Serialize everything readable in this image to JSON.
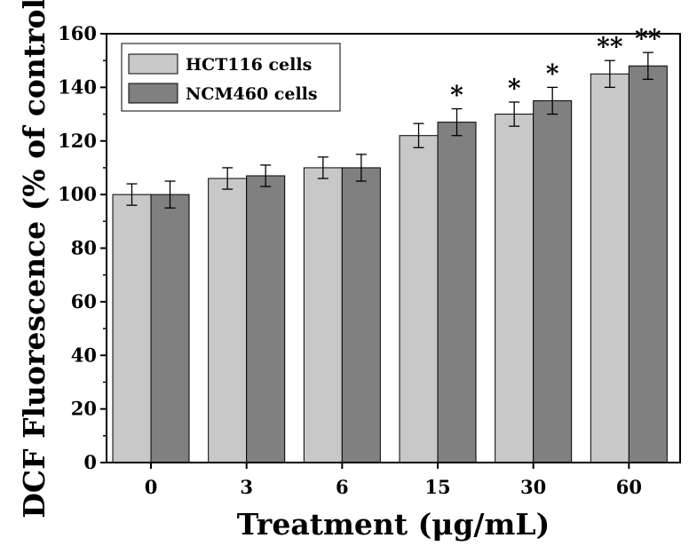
{
  "chart_data": {
    "type": "bar",
    "xlabel": "Treatment (μg/mL)",
    "ylabel": "DCF Fluorescence (% of control)",
    "ylim": [
      0,
      160
    ],
    "yticks": [
      0,
      20,
      40,
      60,
      80,
      100,
      120,
      140,
      160
    ],
    "categories": [
      "0",
      "3",
      "6",
      "15",
      "30",
      "60"
    ],
    "legend_position": "top-left",
    "grid": false,
    "series": [
      {
        "name": "HCT116 cells",
        "color": "#c8c8c8",
        "values": [
          100,
          106,
          110,
          122,
          130,
          145
        ],
        "errors": [
          4,
          4,
          4,
          4.5,
          4.5,
          5
        ],
        "annotations": [
          "",
          "",
          "",
          "",
          "*",
          "**"
        ]
      },
      {
        "name": "NCM460 cells",
        "color": "#808080",
        "values": [
          100,
          107,
          110,
          127,
          135,
          148
        ],
        "errors": [
          5,
          4,
          5,
          5,
          5,
          5
        ],
        "annotations": [
          "",
          "",
          "",
          "*",
          "*",
          "**"
        ]
      }
    ]
  }
}
